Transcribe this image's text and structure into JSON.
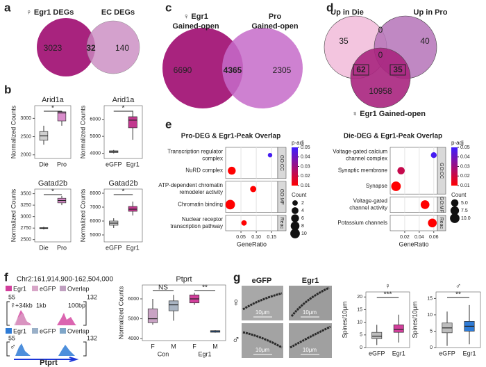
{
  "a": {
    "letter": "a",
    "left": "♀ Egr1 DEGs",
    "right": "EC DEGs",
    "counts": [
      3023,
      32,
      140
    ]
  },
  "b": {
    "letter": "b",
    "plots": [
      {
        "title": "Arid1a",
        "ylabel": "Normalized Counts",
        "categories": [
          "Die",
          "Pro"
        ],
        "colors": [
          "#cfcfcf",
          "#d98ccb"
        ],
        "ylim": [
          1900,
          3350
        ],
        "yticks": [
          2000,
          2500,
          3000
        ],
        "boxes": [
          {
            "min": 2280,
            "q1": 2400,
            "median": 2520,
            "q3": 2640,
            "max": 2800
          },
          {
            "min": 2800,
            "q1": 2930,
            "median": 3150,
            "q3": 3180,
            "max": 3200
          }
        ],
        "brackets": [
          {
            "label": "*"
          }
        ]
      },
      {
        "title": "Arid1a",
        "ylabel": "Normalized Counts",
        "categories": [
          "eGFP",
          "Egr1"
        ],
        "colors": [
          "#cfcfcf",
          "#c2398f"
        ],
        "ylim": [
          3700,
          6800
        ],
        "yticks": [
          4000,
          5000,
          6000
        ],
        "boxes": [
          {
            "min": 4000,
            "q1": 4050,
            "median": 4100,
            "q3": 4150,
            "max": 4200
          },
          {
            "min": 4800,
            "q1": 5500,
            "median": 5950,
            "q3": 6150,
            "max": 6500
          }
        ],
        "brackets": [
          {
            "label": "*"
          }
        ]
      },
      {
        "title": "Gatad2b",
        "ylabel": "Normalized Counts",
        "categories": [
          "Die",
          "Pro"
        ],
        "colors": [
          "#cfcfcf",
          "#d98ccb"
        ],
        "ylim": [
          2450,
          3600
        ],
        "yticks": [
          2500,
          2750,
          3000,
          3250,
          3500
        ],
        "boxes": [
          {
            "min": 2720,
            "q1": 2740,
            "median": 2750,
            "q3": 2760,
            "max": 2780
          },
          {
            "min": 3250,
            "q1": 3300,
            "median": 3350,
            "q3": 3400,
            "max": 3450
          }
        ],
        "brackets": [
          {
            "label": "*"
          }
        ]
      },
      {
        "title": "Gatad2b",
        "ylabel": "Normalized Counts",
        "categories": [
          "eGFP",
          "Egr1"
        ],
        "colors": [
          "#cfcfcf",
          "#c2398f"
        ],
        "ylim": [
          4500,
          8300
        ],
        "yticks": [
          5000,
          6000,
          7000,
          8000
        ],
        "boxes": [
          {
            "min": 5500,
            "q1": 5700,
            "median": 5850,
            "q3": 6000,
            "max": 6200
          },
          {
            "min": 6400,
            "q1": 6700,
            "median": 6850,
            "q3": 7050,
            "max": 7400
          }
        ],
        "brackets": [
          {
            "label": "*"
          }
        ]
      }
    ]
  },
  "c": {
    "letter": "c",
    "left": [
      "♀ Egr1",
      "Gained-open"
    ],
    "right": [
      "Pro",
      "Gained-open"
    ],
    "counts": [
      6690,
      4365,
      2305
    ]
  },
  "d": {
    "letter": "d",
    "sets": [
      "Up in Die",
      "Up in Pro",
      "♀ Egr1 Gained-open"
    ],
    "counts": [
      35,
      0,
      40,
      0,
      62,
      35,
      10958
    ]
  },
  "e": {
    "letter": "e",
    "plots": [
      {
        "title": "Pro-DEG & Egr1-Peak Overlap",
        "xlabel": "GeneRatio",
        "xlim": [
          0,
          0.17
        ],
        "xticks": [
          0.05,
          {
            "value": 0.1,
            "label": "0.10"
          },
          0.15
        ],
        "facets": [
          {
            "name": "GO:CC",
            "terms": [
              {
                "label": [
                  "Transcription regulator",
                  "complex"
                ],
                "ratio": 0.145,
                "count": 1,
                "padj": 0.048
              },
              {
                "label": [
                  "NuRD complex"
                ],
                "ratio": 0.02,
                "count": 6,
                "padj": 0.003
              }
            ]
          },
          {
            "name": "GO:MF",
            "terms": [
              {
                "label": [
                  "ATP-dependent chromatin",
                  "remodeler activity"
                ],
                "ratio": 0.09,
                "count": 3,
                "padj": 0.008
              },
              {
                "label": [
                  "Chromatin binding"
                ],
                "ratio": 0.015,
                "count": 10,
                "padj": 0.002
              }
            ]
          },
          {
            "name": "Reac",
            "terms": [
              {
                "label": [
                  "Nuclear receptor",
                  "transcription pathway"
                ],
                "ratio": 0.06,
                "count": 2,
                "padj": 0.01
              }
            ]
          }
        ],
        "padj_title": "p-adj",
        "padj_ticks": [
          0.05,
          0.04,
          0.03,
          0.02,
          0.01
        ],
        "count_title": "Count",
        "count_ticks": [
          2,
          4,
          6,
          8,
          10
        ]
      },
      {
        "title": "Die-DEG & Egr1-Peak Overlap",
        "xlabel": "GeneRatio",
        "xlim": [
          0,
          0.065
        ],
        "xticks": [
          0.02,
          0.04,
          0.06
        ],
        "facets": [
          {
            "name": "GO:CC",
            "terms": [
              {
                "label": [
                  "Voltage-gated calcium",
                  "channel complex"
                ],
                "ratio": 0.06,
                "count": 2.5,
                "padj": 0.048
              },
              {
                "label": [
                  "Synaptic membrane"
                ],
                "ratio": 0.015,
                "count": 5,
                "padj": 0.022
              },
              {
                "label": [
                  "Synapse"
                ],
                "ratio": 0.008,
                "count": 10,
                "padj": 0.004
              }
            ]
          },
          {
            "name": "GO:MF",
            "terms": [
              {
                "label": [
                  "Voltage-gated",
                  "channel activity"
                ],
                "ratio": 0.048,
                "count": 8,
                "padj": 0.003
              }
            ]
          },
          {
            "name": "Reac",
            "terms": [
              {
                "label": [
                  "Potassium channels"
                ],
                "ratio": 0.058,
                "count": 8,
                "padj": 0.003
              }
            ]
          }
        ],
        "padj_title": "p-adj",
        "padj_ticks": [
          0.05,
          0.04,
          0.03,
          0.02,
          0.01
        ],
        "count_title": "Count",
        "count_ticks": [
          {
            "value": 5,
            "label": "5.0"
          },
          7.5,
          {
            "value": 10,
            "label": "10.0"
          }
        ]
      }
    ]
  },
  "f": {
    "letter": "f",
    "locus": "Chr2:161,914,900-162,504,000",
    "legend_female": [
      "Egr1",
      "eGFP",
      "Overlap"
    ],
    "legend_male": [
      "Egr1",
      "eGFP",
      "Overlap"
    ],
    "female": "♀",
    "male": "♂",
    "track_labels": [
      "+34kb",
      "1kb",
      "100bp"
    ],
    "scale_min": "55",
    "scale_max": "132",
    "gene": "Ptprt",
    "plot": {
      "title": "Ptprt",
      "ylabel": "Normalized Counts",
      "categories": [
        "F",
        "M",
        "F",
        "M"
      ],
      "groups": [
        "Con",
        "Egr1"
      ],
      "colors": [
        "#c9a3c4",
        "#a9b4c2",
        "#d23f9c",
        "#2e7bd6"
      ],
      "ylim": [
        3900,
        6700
      ],
      "yticks": [
        4000,
        5000,
        6000
      ],
      "boxes": [
        {
          "min": 4700,
          "q1": 4800,
          "median": 5000,
          "q3": 5500,
          "max": 6000
        },
        {
          "min": 4900,
          "q1": 5400,
          "median": 5700,
          "q3": 5900,
          "max": 6200
        },
        {
          "min": 5700,
          "q1": 5800,
          "median": 6000,
          "q3": 6200,
          "max": 6300
        },
        {
          "min": 4300,
          "q1": 4320,
          "median": 4350,
          "q3": 4400,
          "max": 4420
        }
      ],
      "brackets": [
        {
          "label": "NS"
        },
        {
          "label": "**"
        }
      ]
    }
  },
  "g": {
    "letter": "g",
    "columns": [
      "eGFP",
      "Egr1"
    ],
    "rows": [
      "♀",
      "♂"
    ],
    "scale_bar": "10μm",
    "plots": [
      {
        "title": "♀",
        "ylabel": "Spines/10μm",
        "categories": [
          "eGFP",
          "Egr1"
        ],
        "colors": [
          "#bdbdbd",
          "#d23f9c"
        ],
        "ylim": [
          0,
          22
        ],
        "yticks": [
          0,
          5,
          10,
          15,
          20
        ],
        "boxes": [
          {
            "min": 1,
            "q1": 3.5,
            "median": 4.5,
            "q3": 6,
            "max": 9
          },
          {
            "min": 2,
            "q1": 6,
            "median": 7.2,
            "q3": 9,
            "max": 13
          }
        ],
        "brackets": [
          {
            "label": "***"
          }
        ]
      },
      {
        "title": "♂",
        "ylabel": "Spines/10μm",
        "categories": [
          "eGFP",
          "Egr1"
        ],
        "colors": [
          "#bdbdbd",
          "#2e7bd6"
        ],
        "ylim": [
          0,
          17
        ],
        "yticks": [
          0,
          5,
          10,
          15
        ],
        "boxes": [
          {
            "min": 0.5,
            "q1": 4.5,
            "median": 6,
            "q3": 7.5,
            "max": 11
          },
          {
            "min": 1,
            "q1": 5,
            "median": 6.5,
            "q3": 8,
            "max": 13
          }
        ],
        "brackets": [
          {
            "label": "**"
          }
        ]
      }
    ]
  }
}
